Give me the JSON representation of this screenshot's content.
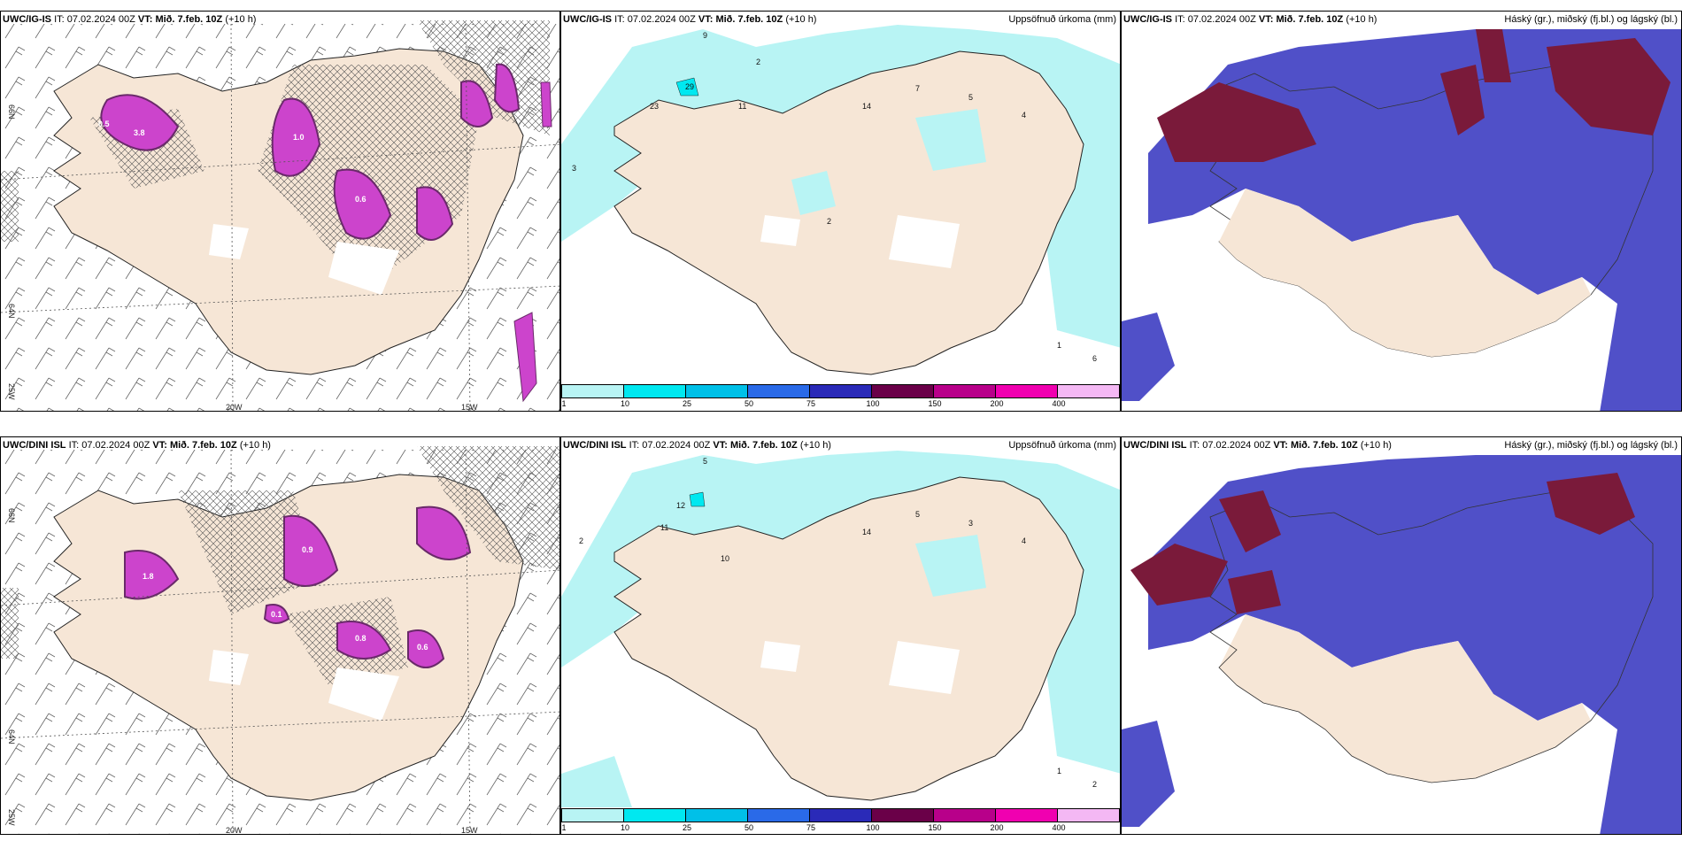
{
  "rows": [
    {
      "model": "UWC/IG-IS",
      "it_label": "IT:",
      "it_value": "07.02.2024 00Z",
      "vt_label": "VT:",
      "vt_value": "Mið. 7.feb. 10Z",
      "lead": "(+10 h)"
    },
    {
      "model": "UWC/DINI ISL",
      "it_label": "IT:",
      "it_value": "07.02.2024 00Z",
      "vt_label": "VT:",
      "vt_value": "Mið. 7.feb. 10Z",
      "lead": "(+10 h)"
    }
  ],
  "panel_titles": {
    "precip": "Uppsöfnuð úrkoma (mm)",
    "cloud": "Háský (gr.), miðský (fj.bl.) og lágský (bl.)"
  },
  "axis_labels": {
    "lon_20w": "20W",
    "lon_15w": "15W",
    "lat_66n": "66N",
    "lat_64n": "64N",
    "lon_25w": "25W"
  },
  "colorbar": {
    "labels": [
      "1",
      "10",
      "25",
      "50",
      "75",
      "100",
      "150",
      "200",
      "400"
    ],
    "colors": [
      "#b8f4f4",
      "#00e8f0",
      "#00c0e8",
      "#2a6ae8",
      "#2a2ab8",
      "#6a0048",
      "#b8008a",
      "#f000b0",
      "#f4b8f4"
    ]
  },
  "colors": {
    "land": "#f6e6d6",
    "snow_pink": "#cc44cc",
    "snow_dark": "#6a2a6a",
    "precip_cyan": "#b8f4f4",
    "cloud_blue": "#5050c8",
    "cloud_red": "#7a1a3a"
  }
}
